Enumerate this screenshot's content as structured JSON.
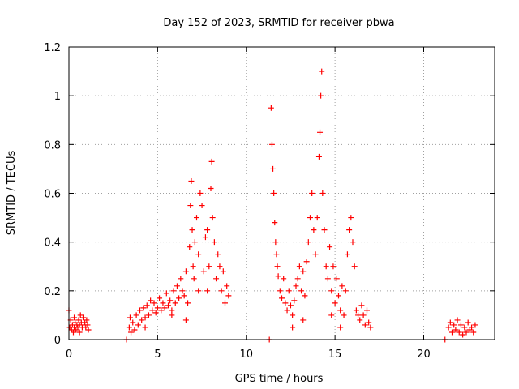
{
  "chart_data": {
    "type": "scatter",
    "title": "Day 152 of 2023, SRMTID for receiver pbwa",
    "xlabel": "GPS time / hours",
    "ylabel": "SRMTID / TECUs",
    "xlim": [
      0,
      24
    ],
    "ylim": [
      0,
      1.2
    ],
    "x_ticks": [
      0,
      5,
      10,
      15,
      20
    ],
    "y_ticks": [
      0,
      0.2,
      0.4,
      0.6,
      0.8,
      1.0,
      1.2
    ],
    "x_tick_labels": [
      "0",
      "5",
      "10",
      "15",
      "20"
    ],
    "y_tick_labels": [
      "0",
      "0.2",
      "0.4",
      "0.6",
      "0.8",
      "1",
      "1.2"
    ],
    "grid": true,
    "marker": "+",
    "color": "#ff0000",
    "series": [
      {
        "name": "SRMTID",
        "points": [
          [
            0.0,
            0.12
          ],
          [
            0.05,
            0.05
          ],
          [
            0.1,
            0.08
          ],
          [
            0.15,
            0.04
          ],
          [
            0.2,
            0.06
          ],
          [
            0.25,
            0.03
          ],
          [
            0.3,
            0.05
          ],
          [
            0.35,
            0.07
          ],
          [
            0.4,
            0.04
          ],
          [
            0.45,
            0.06
          ],
          [
            0.5,
            0.05
          ],
          [
            0.55,
            0.08
          ],
          [
            0.6,
            0.06
          ],
          [
            0.65,
            0.1
          ],
          [
            0.7,
            0.07
          ],
          [
            0.75,
            0.05
          ],
          [
            0.8,
            0.09
          ],
          [
            0.85,
            0.06
          ],
          [
            0.9,
            0.07
          ],
          [
            0.95,
            0.05
          ],
          [
            1.0,
            0.08
          ],
          [
            1.05,
            0.06
          ],
          [
            1.1,
            0.04
          ],
          [
            0.6,
            0.03
          ],
          [
            0.3,
            0.09
          ],
          [
            3.25,
            0.0
          ],
          [
            3.4,
            0.05
          ],
          [
            3.45,
            0.09
          ],
          [
            3.5,
            0.03
          ],
          [
            3.6,
            0.07
          ],
          [
            3.7,
            0.04
          ],
          [
            3.8,
            0.1
          ],
          [
            3.9,
            0.06
          ],
          [
            4.0,
            0.12
          ],
          [
            4.1,
            0.08
          ],
          [
            4.2,
            0.13
          ],
          [
            4.3,
            0.09
          ],
          [
            4.4,
            0.14
          ],
          [
            4.5,
            0.1
          ],
          [
            4.6,
            0.16
          ],
          [
            4.7,
            0.12
          ],
          [
            4.8,
            0.15
          ],
          [
            4.9,
            0.11
          ],
          [
            5.0,
            0.13
          ],
          [
            5.1,
            0.17
          ],
          [
            5.2,
            0.12
          ],
          [
            5.3,
            0.15
          ],
          [
            5.4,
            0.13
          ],
          [
            5.5,
            0.19
          ],
          [
            5.6,
            0.14
          ],
          [
            5.7,
            0.16
          ],
          [
            5.8,
            0.12
          ],
          [
            5.9,
            0.2
          ],
          [
            6.0,
            0.15
          ],
          [
            6.1,
            0.22
          ],
          [
            6.2,
            0.17
          ],
          [
            6.3,
            0.25
          ],
          [
            6.4,
            0.2
          ],
          [
            6.5,
            0.18
          ],
          [
            6.6,
            0.28
          ],
          [
            6.7,
            0.15
          ],
          [
            6.8,
            0.38
          ],
          [
            6.85,
            0.55
          ],
          [
            6.9,
            0.65
          ],
          [
            6.95,
            0.45
          ],
          [
            7.0,
            0.3
          ],
          [
            7.05,
            0.25
          ],
          [
            7.1,
            0.4
          ],
          [
            7.2,
            0.5
          ],
          [
            7.3,
            0.35
          ],
          [
            7.4,
            0.6
          ],
          [
            7.5,
            0.55
          ],
          [
            7.6,
            0.28
          ],
          [
            7.7,
            0.42
          ],
          [
            7.8,
            0.2
          ],
          [
            7.9,
            0.3
          ],
          [
            8.0,
            0.62
          ],
          [
            8.05,
            0.73
          ],
          [
            8.1,
            0.5
          ],
          [
            8.2,
            0.4
          ],
          [
            8.3,
            0.25
          ],
          [
            8.4,
            0.35
          ],
          [
            8.5,
            0.3
          ],
          [
            8.6,
            0.2
          ],
          [
            8.7,
            0.28
          ],
          [
            8.8,
            0.15
          ],
          [
            8.9,
            0.22
          ],
          [
            9.0,
            0.18
          ],
          [
            6.6,
            0.08
          ],
          [
            5.8,
            0.1
          ],
          [
            4.3,
            0.05
          ],
          [
            7.3,
            0.2
          ],
          [
            7.8,
            0.45
          ],
          [
            11.3,
            0.0
          ],
          [
            11.4,
            0.95
          ],
          [
            11.45,
            0.8
          ],
          [
            11.5,
            0.7
          ],
          [
            11.55,
            0.6
          ],
          [
            11.6,
            0.48
          ],
          [
            11.65,
            0.4
          ],
          [
            11.7,
            0.35
          ],
          [
            11.75,
            0.3
          ],
          [
            11.8,
            0.26
          ],
          [
            11.9,
            0.2
          ],
          [
            12.0,
            0.17
          ],
          [
            12.1,
            0.25
          ],
          [
            12.2,
            0.15
          ],
          [
            12.3,
            0.12
          ],
          [
            12.4,
            0.2
          ],
          [
            12.5,
            0.14
          ],
          [
            12.6,
            0.1
          ],
          [
            12.7,
            0.16
          ],
          [
            12.8,
            0.22
          ],
          [
            12.9,
            0.25
          ],
          [
            13.0,
            0.3
          ],
          [
            13.1,
            0.2
          ],
          [
            13.2,
            0.28
          ],
          [
            13.3,
            0.18
          ],
          [
            13.4,
            0.32
          ],
          [
            13.5,
            0.4
          ],
          [
            13.6,
            0.5
          ],
          [
            13.7,
            0.6
          ],
          [
            13.8,
            0.45
          ],
          [
            13.9,
            0.35
          ],
          [
            14.0,
            0.5
          ],
          [
            14.1,
            0.75
          ],
          [
            14.15,
            0.85
          ],
          [
            14.2,
            1.0
          ],
          [
            14.25,
            1.1
          ],
          [
            14.3,
            0.6
          ],
          [
            14.4,
            0.45
          ],
          [
            14.5,
            0.3
          ],
          [
            14.6,
            0.25
          ],
          [
            14.7,
            0.38
          ],
          [
            14.8,
            0.2
          ],
          [
            14.9,
            0.3
          ],
          [
            15.0,
            0.15
          ],
          [
            15.1,
            0.25
          ],
          [
            15.2,
            0.18
          ],
          [
            15.3,
            0.12
          ],
          [
            15.4,
            0.22
          ],
          [
            15.5,
            0.1
          ],
          [
            15.6,
            0.2
          ],
          [
            15.7,
            0.35
          ],
          [
            15.8,
            0.45
          ],
          [
            15.9,
            0.5
          ],
          [
            16.0,
            0.4
          ],
          [
            16.1,
            0.3
          ],
          [
            16.2,
            0.12
          ],
          [
            16.3,
            0.1
          ],
          [
            16.4,
            0.08
          ],
          [
            16.5,
            0.14
          ],
          [
            16.6,
            0.1
          ],
          [
            16.7,
            0.06
          ],
          [
            16.8,
            0.12
          ],
          [
            16.9,
            0.07
          ],
          [
            17.0,
            0.05
          ],
          [
            13.2,
            0.08
          ],
          [
            14.8,
            0.1
          ],
          [
            15.3,
            0.05
          ],
          [
            12.6,
            0.05
          ],
          [
            21.2,
            0.0
          ],
          [
            21.4,
            0.05
          ],
          [
            21.5,
            0.07
          ],
          [
            21.6,
            0.03
          ],
          [
            21.7,
            0.06
          ],
          [
            21.8,
            0.04
          ],
          [
            21.9,
            0.08
          ],
          [
            22.0,
            0.03
          ],
          [
            22.1,
            0.06
          ],
          [
            22.2,
            0.02
          ],
          [
            22.3,
            0.05
          ],
          [
            22.4,
            0.03
          ],
          [
            22.5,
            0.07
          ],
          [
            22.6,
            0.04
          ],
          [
            22.7,
            0.05
          ],
          [
            22.8,
            0.03
          ],
          [
            22.9,
            0.06
          ]
        ]
      }
    ]
  }
}
